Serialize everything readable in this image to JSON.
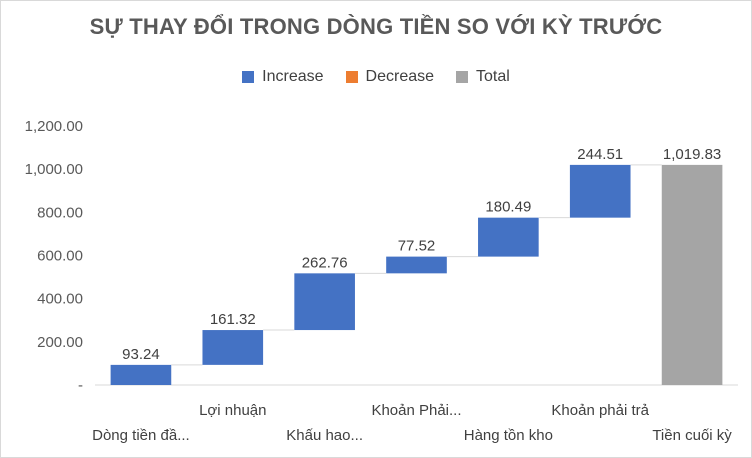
{
  "chart_data": {
    "type": "waterfall",
    "title": "SỰ THAY ĐỔI TRONG DÒNG TIỀN SO VỚI KỲ TRƯỚC",
    "legend": {
      "placement": "top",
      "items": [
        {
          "name": "Increase",
          "color": "#4472c4"
        },
        {
          "name": "Decrease",
          "color": "#ed7d31"
        },
        {
          "name": "Total",
          "color": "#a5a5a5"
        }
      ]
    },
    "categories": [
      "Dòng tiền đầ...",
      "Lợi nhuận",
      "Khấu hao...",
      "Khoản Phải...",
      "Hàng tồn kho",
      "Khoản phải trả",
      "Tiền cuối kỳ"
    ],
    "values": [
      93.24,
      161.32,
      262.76,
      77.52,
      180.49,
      244.51,
      1019.83
    ],
    "value_labels": [
      "93.24",
      "161.32",
      "262.76",
      "77.52",
      "180.49",
      "244.51",
      "1,019.83"
    ],
    "kinds": [
      "increase",
      "increase",
      "increase",
      "increase",
      "increase",
      "increase",
      "total"
    ],
    "ylim": [
      0,
      1200
    ],
    "yticks": [
      0,
      200,
      400,
      600,
      800,
      1000,
      1200
    ],
    "ytick_labels": [
      "-",
      "200.00",
      "400.00",
      "600.00",
      "800.00",
      "1,000.00",
      "1,200.00"
    ],
    "grid": false,
    "xlabel": "",
    "ylabel": ""
  }
}
